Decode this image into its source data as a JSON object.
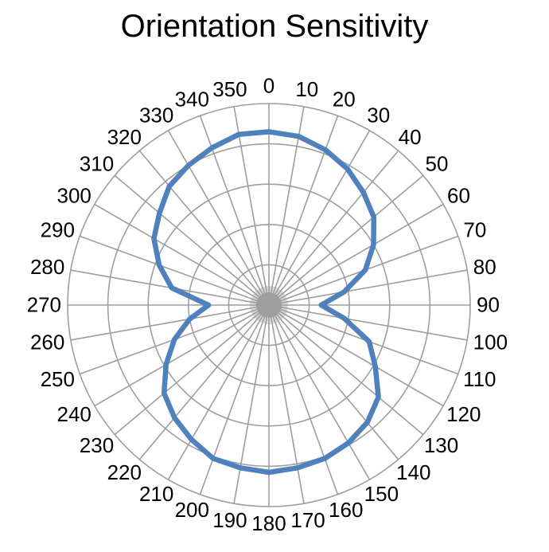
{
  "window": {
    "background": "#ffffff"
  },
  "chart_data": {
    "type": "radar",
    "title": "Orientation Sensitivity",
    "angle_unit": "degrees",
    "categories": [
      0,
      10,
      20,
      30,
      40,
      50,
      60,
      70,
      80,
      90,
      100,
      110,
      120,
      130,
      140,
      150,
      160,
      170,
      180,
      190,
      200,
      210,
      220,
      230,
      240,
      250,
      260,
      270,
      280,
      290,
      300,
      310,
      320,
      330,
      340,
      350
    ],
    "series": [
      {
        "values": [
          0.86,
          0.85,
          0.82,
          0.78,
          0.73,
          0.68,
          0.6,
          0.51,
          0.38,
          0.26,
          0.38,
          0.53,
          0.61,
          0.71,
          0.76,
          0.79,
          0.81,
          0.82,
          0.83,
          0.82,
          0.81,
          0.77,
          0.73,
          0.68,
          0.59,
          0.5,
          0.4,
          0.3,
          0.49,
          0.58,
          0.66,
          0.71,
          0.77,
          0.8,
          0.83,
          0.86
        ]
      }
    ],
    "r_axis": {
      "min": 0,
      "max": 1,
      "rings": 5,
      "ring_step": 0.2,
      "tick_labels_visible": false
    },
    "legend_position": "none",
    "grid": true,
    "angle_tick_step": 10,
    "style": {
      "line_color": "#4f81bd",
      "grid_color": "#9e9e9e",
      "hub_color": "#9e9e9e",
      "label_color": "#000000",
      "title_color": "#000000"
    }
  }
}
